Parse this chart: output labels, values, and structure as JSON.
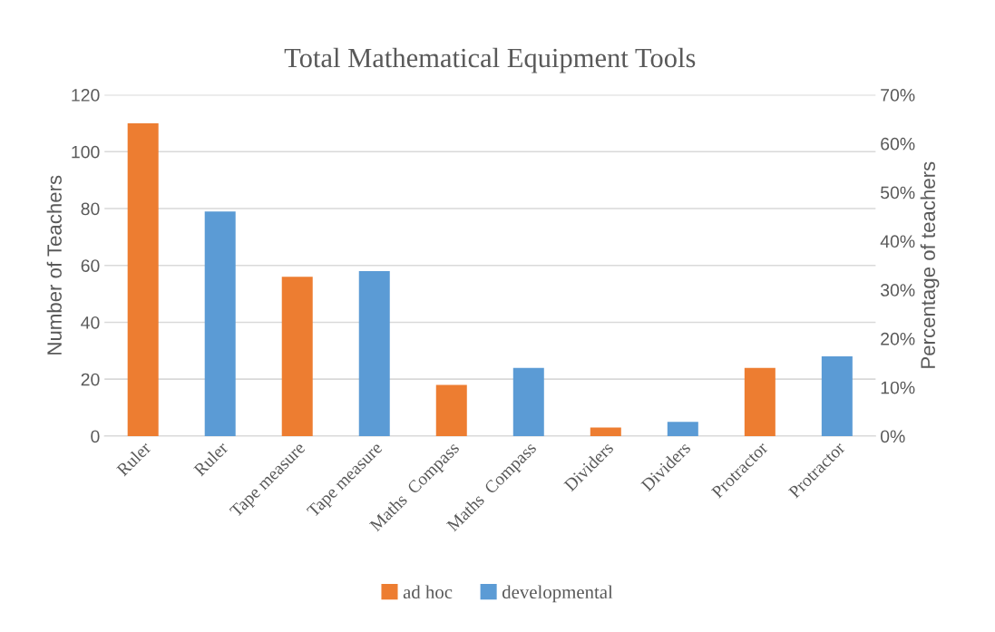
{
  "chart_data": {
    "type": "bar",
    "title": "Total Mathematical Equipment Tools",
    "ylabel": "Number of Teachers",
    "y2label": "Percentage of teachers",
    "categories": [
      "Ruler",
      "Ruler",
      "Tape measure",
      "Tape measure",
      "Maths  Compass",
      "Maths  Compass",
      "Dividers",
      "Dividers",
      "Protractor",
      "Protractor"
    ],
    "series": [
      {
        "name": "ad hoc",
        "color": "#ed7d31",
        "values": [
          110,
          null,
          56,
          null,
          18,
          null,
          3,
          null,
          24,
          null
        ]
      },
      {
        "name": "developmental",
        "color": "#5b9bd5",
        "values": [
          null,
          79,
          null,
          58,
          null,
          24,
          null,
          5,
          null,
          28
        ]
      }
    ],
    "ylim": [
      0,
      120
    ],
    "yticks": [
      0,
      20,
      40,
      60,
      80,
      100,
      120
    ],
    "y2lim": [
      0,
      0.7
    ],
    "y2ticks": [
      {
        "value": 0,
        "label": "0%"
      },
      {
        "value": 0.1,
        "label": "10%"
      },
      {
        "value": 0.2,
        "label": "20%"
      },
      {
        "value": 0.3,
        "label": "30%"
      },
      {
        "value": 0.4,
        "label": "40%"
      },
      {
        "value": 0.5,
        "label": "50%"
      },
      {
        "value": 0.6,
        "label": "60%"
      },
      {
        "value": 0.7,
        "label": "70%"
      }
    ],
    "grid": "y",
    "legend": "bottom"
  }
}
